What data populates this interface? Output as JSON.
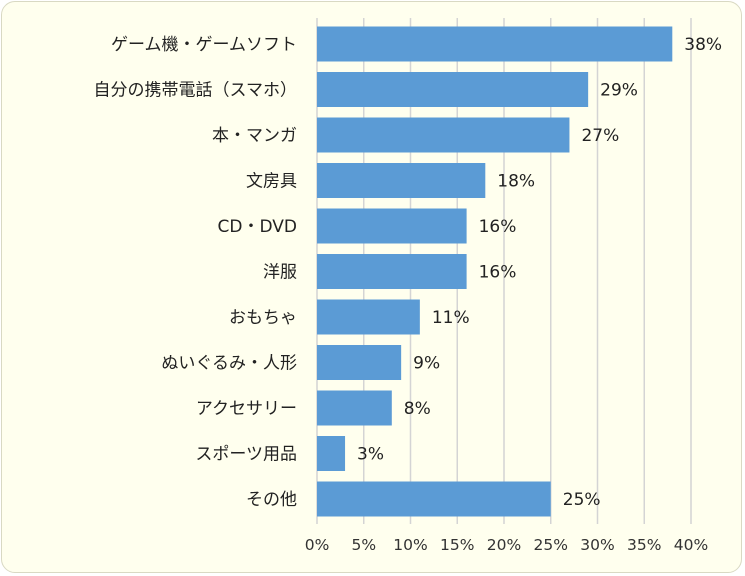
{
  "chart_data": {
    "type": "bar",
    "orientation": "horizontal",
    "title": "",
    "xlabel": "",
    "ylabel": "",
    "categories": [
      "ゲーム機・ゲームソフト",
      "自分の携帯電話（スマホ）",
      "本・マンガ",
      "文房具",
      "CD・DVD",
      "洋服",
      "おもちゃ",
      "ぬいぐるみ・人形",
      "アクセサリー",
      "スポーツ用品",
      "その他"
    ],
    "values": [
      38,
      29,
      27,
      18,
      16,
      16,
      11,
      9,
      8,
      3,
      25
    ],
    "value_labels": [
      "38%",
      "29%",
      "27%",
      "18%",
      "16%",
      "16%",
      "11%",
      "9%",
      "8%",
      "3%",
      "25%"
    ],
    "xlim": [
      0,
      40
    ],
    "x_ticks": [
      0,
      5,
      10,
      15,
      20,
      25,
      30,
      35,
      40
    ],
    "x_tick_labels": [
      "0%",
      "5%",
      "10%",
      "15%",
      "20%",
      "25%",
      "30%",
      "35%",
      "40%"
    ],
    "grid": true,
    "legend": "none",
    "bar_color": "#5b9bd5",
    "background_color": "#ffffee"
  }
}
